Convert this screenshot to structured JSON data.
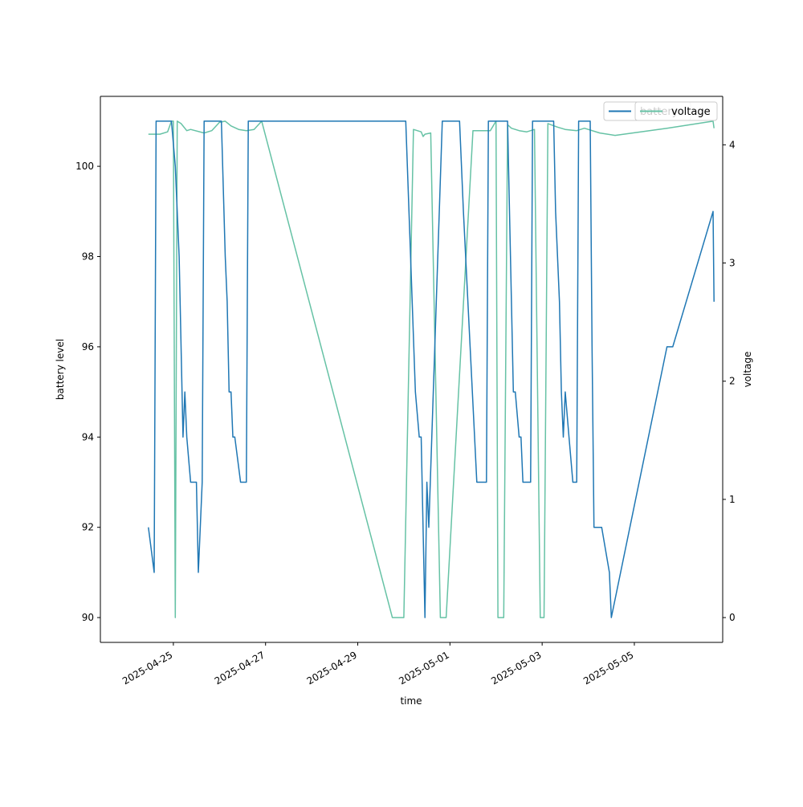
{
  "chart_data": {
    "type": "line",
    "title": "",
    "xlabel": "time",
    "ylabel_left": "battery level",
    "ylabel_right": "voltage",
    "x_range": [
      "2025-04-23 10:00",
      "2025-05-06 22:00"
    ],
    "ylim_left": [
      89.45,
      101.55
    ],
    "ylim_right": [
      -0.21,
      4.41
    ],
    "x_ticks": [
      "2025-04-25",
      "2025-04-27",
      "2025-04-29",
      "2025-05-01",
      "2025-05-03",
      "2025-05-05"
    ],
    "y_ticks_left": [
      90,
      92,
      94,
      96,
      98,
      100
    ],
    "y_ticks_right": [
      0,
      1,
      2,
      3,
      4
    ],
    "grid": false,
    "colors": {
      "battery": "#1f77b4",
      "voltage": "#66c2a5"
    },
    "series": [
      {
        "name": "battery",
        "axis": "left",
        "points": [
          [
            "2025-04-24 11:00",
            92
          ],
          [
            "2025-04-24 14:00",
            91
          ],
          [
            "2025-04-24 15:00",
            101
          ],
          [
            "2025-04-24 23:00",
            101
          ],
          [
            "2025-04-25 01:00",
            100
          ],
          [
            "2025-04-25 03:00",
            98
          ],
          [
            "2025-04-25 05:00",
            94
          ],
          [
            "2025-04-25 06:00",
            95
          ],
          [
            "2025-04-25 07:00",
            94
          ],
          [
            "2025-04-25 09:00",
            93
          ],
          [
            "2025-04-25 12:00",
            93
          ],
          [
            "2025-04-25 13:00",
            91
          ],
          [
            "2025-04-25 15:00",
            93
          ],
          [
            "2025-04-25 16:00",
            101
          ],
          [
            "2025-04-26 01:00",
            101
          ],
          [
            "2025-04-26 03:00",
            98
          ],
          [
            "2025-04-26 04:00",
            97
          ],
          [
            "2025-04-26 05:00",
            95
          ],
          [
            "2025-04-26 06:00",
            95
          ],
          [
            "2025-04-26 07:00",
            94
          ],
          [
            "2025-04-26 08:00",
            94
          ],
          [
            "2025-04-26 11:00",
            93
          ],
          [
            "2025-04-26 14:00",
            93
          ],
          [
            "2025-04-26 15:00",
            101
          ],
          [
            "2025-04-30 01:00",
            101
          ],
          [
            "2025-04-30 06:00",
            95
          ],
          [
            "2025-04-30 08:00",
            94
          ],
          [
            "2025-04-30 09:00",
            94
          ],
          [
            "2025-04-30 11:00",
            90
          ],
          [
            "2025-04-30 12:00",
            93
          ],
          [
            "2025-04-30 13:00",
            92
          ],
          [
            "2025-04-30 20:00",
            101
          ],
          [
            "2025-05-01 05:00",
            101
          ],
          [
            "2025-05-01 07:00",
            99
          ],
          [
            "2025-05-01 14:00",
            93
          ],
          [
            "2025-05-01 19:00",
            93
          ],
          [
            "2025-05-01 20:00",
            101
          ],
          [
            "2025-05-02 06:00",
            101
          ],
          [
            "2025-05-02 07:00",
            99
          ],
          [
            "2025-05-02 08:00",
            97
          ],
          [
            "2025-05-02 09:00",
            95
          ],
          [
            "2025-05-02 10:00",
            95
          ],
          [
            "2025-05-02 12:00",
            94
          ],
          [
            "2025-05-02 13:00",
            94
          ],
          [
            "2025-05-02 14:00",
            93
          ],
          [
            "2025-05-02 18:00",
            93
          ],
          [
            "2025-05-02 19:00",
            101
          ],
          [
            "2025-05-03 06:00",
            101
          ],
          [
            "2025-05-03 07:00",
            99
          ],
          [
            "2025-05-03 09:00",
            97
          ],
          [
            "2025-05-03 10:00",
            95
          ],
          [
            "2025-05-03 11:00",
            94
          ],
          [
            "2025-05-03 12:00",
            95
          ],
          [
            "2025-05-03 14:00",
            94
          ],
          [
            "2025-05-03 16:00",
            93
          ],
          [
            "2025-05-03 18:00",
            93
          ],
          [
            "2025-05-03 19:00",
            101
          ],
          [
            "2025-05-04 01:00",
            101
          ],
          [
            "2025-05-04 02:00",
            96
          ],
          [
            "2025-05-04 03:00",
            92
          ],
          [
            "2025-05-04 07:00",
            92
          ],
          [
            "2025-05-04 11:00",
            91
          ],
          [
            "2025-05-04 12:00",
            90
          ],
          [
            "2025-05-05 17:00",
            96
          ],
          [
            "2025-05-05 20:00",
            96
          ],
          [
            "2025-05-06 17:00",
            99
          ],
          [
            "2025-05-06 17:30",
            97
          ]
        ]
      },
      {
        "name": "voltage",
        "axis": "right",
        "points": [
          [
            "2025-04-24 11:00",
            4.09
          ],
          [
            "2025-04-24 17:00",
            4.09
          ],
          [
            "2025-04-24 21:00",
            4.11
          ],
          [
            "2025-04-24 23:00",
            4.2
          ],
          [
            "2025-04-25 00:00",
            4.2
          ],
          [
            "2025-04-25 01:00",
            0
          ],
          [
            "2025-04-25 02:00",
            4.2
          ],
          [
            "2025-04-25 04:00",
            4.18
          ],
          [
            "2025-04-25 07:00",
            4.12
          ],
          [
            "2025-04-25 09:00",
            4.13
          ],
          [
            "2025-04-25 16:00",
            4.1
          ],
          [
            "2025-04-25 20:00",
            4.12
          ],
          [
            "2025-04-26 00:00",
            4.19
          ],
          [
            "2025-04-26 03:00",
            4.2
          ],
          [
            "2025-04-26 06:00",
            4.16
          ],
          [
            "2025-04-26 10:00",
            4.13
          ],
          [
            "2025-04-26 14:00",
            4.12
          ],
          [
            "2025-04-26 18:00",
            4.13
          ],
          [
            "2025-04-26 22:00",
            4.2
          ],
          [
            "2025-04-29 18:00",
            0
          ],
          [
            "2025-04-30 00:00",
            0
          ],
          [
            "2025-04-30 05:00",
            4.13
          ],
          [
            "2025-04-30 09:00",
            4.11
          ],
          [
            "2025-04-30 10:00",
            4.07
          ],
          [
            "2025-04-30 11:00",
            4.09
          ],
          [
            "2025-04-30 14:00",
            4.1
          ],
          [
            "2025-04-30 19:00",
            0
          ],
          [
            "2025-04-30 22:00",
            0
          ],
          [
            "2025-05-01 12:00",
            4.12
          ],
          [
            "2025-05-01 21:00",
            4.12
          ],
          [
            "2025-05-02 00:00",
            4.2
          ],
          [
            "2025-05-02 01:00",
            0
          ],
          [
            "2025-05-02 04:00",
            0
          ],
          [
            "2025-05-02 06:00",
            4.17
          ],
          [
            "2025-05-02 08:00",
            4.14
          ],
          [
            "2025-05-02 12:00",
            4.12
          ],
          [
            "2025-05-02 16:00",
            4.11
          ],
          [
            "2025-05-02 20:00",
            4.13
          ],
          [
            "2025-05-02 23:00",
            0
          ],
          [
            "2025-05-03 01:00",
            0
          ],
          [
            "2025-05-03 03:00",
            4.18
          ],
          [
            "2025-05-03 08:00",
            4.15
          ],
          [
            "2025-05-03 12:00",
            4.13
          ],
          [
            "2025-05-03 18:00",
            4.12
          ],
          [
            "2025-05-03 22:00",
            4.14
          ],
          [
            "2025-05-04 06:00",
            4.1
          ],
          [
            "2025-05-04 14:00",
            4.08
          ],
          [
            "2025-05-05 17:00",
            4.14
          ],
          [
            "2025-05-06 17:00",
            4.2
          ],
          [
            "2025-05-06 17:30",
            4.14
          ]
        ]
      }
    ],
    "legends": [
      {
        "position": "upper-right",
        "entries": [
          "battery"
        ]
      },
      {
        "position": "upper-right",
        "entries": [
          "voltage"
        ]
      }
    ]
  }
}
